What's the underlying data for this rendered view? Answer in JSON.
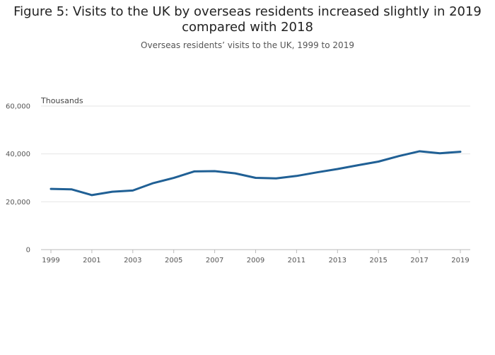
{
  "chart_data": {
    "type": "line",
    "title": "Figure 5: Visits to the UK by overseas residents increased slightly in 2019 compared with 2018",
    "subtitle": "Overseas residents’ visits to the UK, 1999 to 2019",
    "ylabel": "Thousands",
    "xlabel": "",
    "x": [
      1999,
      2000,
      2001,
      2002,
      2003,
      2004,
      2005,
      2006,
      2007,
      2008,
      2009,
      2010,
      2011,
      2012,
      2013,
      2014,
      2015,
      2016,
      2017,
      2018,
      2019
    ],
    "series": [
      {
        "values": [
          25400,
          25200,
          22800,
          24200,
          24700,
          27800,
          29970,
          32700,
          32800,
          31900,
          30000,
          29800,
          30800,
          32300,
          33700,
          35300,
          36800,
          39100,
          41100,
          40300,
          40900
        ]
      }
    ],
    "ylim": [
      0,
      60000
    ],
    "yticks": [
      0,
      20000,
      40000,
      60000
    ],
    "ytick_labels": [
      "0",
      "20,000",
      "40,000",
      "60,000"
    ],
    "xticks": [
      1999,
      2001,
      2003,
      2005,
      2007,
      2009,
      2011,
      2013,
      2015,
      2017,
      2019
    ],
    "xtick_labels": [
      "1999",
      "2001",
      "2003",
      "2005",
      "2007",
      "2009",
      "2011",
      "2013",
      "2015",
      "2017",
      "2019"
    ],
    "grid": true,
    "legend": "none",
    "line_color": "#206095",
    "grid_color": "#e6e6e6",
    "axis_color": "#bbbbbb"
  }
}
